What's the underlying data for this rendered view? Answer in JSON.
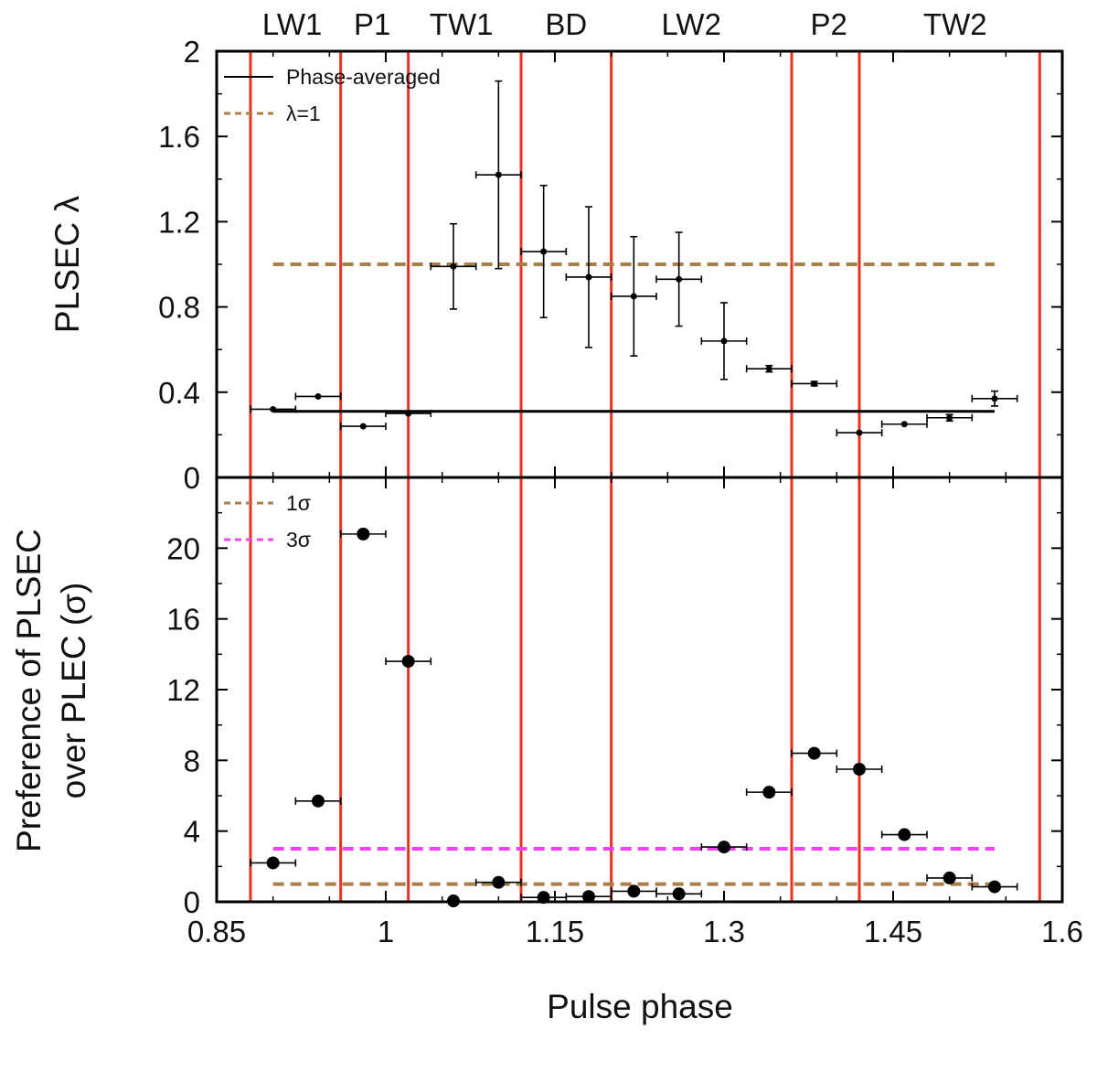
{
  "chart_data": {
    "type": "scatter",
    "xlabel": "Pulse phase",
    "xlim": [
      0.85,
      1.6
    ],
    "x_ticks": [
      "0.85",
      "1",
      "1.15",
      "1.3",
      "1.45",
      "1.6"
    ],
    "colors": {
      "phase_boundaries": "#e8321e",
      "lambda_ref": "#a87f4a",
      "one_sigma": "#a87f4a",
      "three_sigma": "#ee44ee",
      "points": "#000000",
      "axes": "#000000"
    },
    "phase_regions": [
      {
        "label": "LW1",
        "x_center": 0.917
      },
      {
        "label": "P1",
        "x_center": 0.988
      },
      {
        "label": "TW1",
        "x_center": 1.067
      },
      {
        "label": "BD",
        "x_center": 1.16
      },
      {
        "label": "LW2",
        "x_center": 1.271
      },
      {
        "label": "P2",
        "x_center": 1.393
      },
      {
        "label": "TW2",
        "x_center": 1.505
      }
    ],
    "phase_boundaries_x": [
      0.88,
      0.96,
      1.02,
      1.12,
      1.2,
      1.36,
      1.42,
      1.58
    ],
    "panels": [
      {
        "id": "top",
        "ylabel": "PLSEC λ",
        "ylim": [
          0,
          2
        ],
        "y_ticks": [
          "0",
          "0.4",
          "0.8",
          "1.2",
          "1.6",
          "2"
        ],
        "legend": [
          {
            "label": "Phase-averaged",
            "style": "solid",
            "color": "#000000"
          },
          {
            "label": "λ=1",
            "style": "dashed",
            "color": "#a87f4a"
          }
        ],
        "reference_lines": [
          {
            "name": "Phase-averaged",
            "y": 0.31,
            "x_range": [
              0.9,
              1.54
            ],
            "style": "solid",
            "color": "#000000"
          },
          {
            "name": "λ=1",
            "y": 1.0,
            "x_range": [
              0.9,
              1.54
            ],
            "style": "dashed",
            "color": "#a87f4a"
          }
        ],
        "points": [
          {
            "x": 0.9,
            "xerr": 0.02,
            "y": 0.32,
            "yerr": 0.0
          },
          {
            "x": 0.94,
            "xerr": 0.02,
            "y": 0.38,
            "yerr": 0.0
          },
          {
            "x": 0.98,
            "xerr": 0.02,
            "y": 0.24,
            "yerr": 0.0
          },
          {
            "x": 1.02,
            "xerr": 0.02,
            "y": 0.3,
            "yerr": 0.0
          },
          {
            "x": 1.06,
            "xerr": 0.02,
            "y": 0.99,
            "yerr": 0.2
          },
          {
            "x": 1.1,
            "xerr": 0.02,
            "y": 1.42,
            "yerr": 0.44
          },
          {
            "x": 1.14,
            "xerr": 0.02,
            "y": 1.06,
            "yerr": 0.31
          },
          {
            "x": 1.18,
            "xerr": 0.02,
            "y": 0.94,
            "yerr": 0.33
          },
          {
            "x": 1.22,
            "xerr": 0.02,
            "y": 0.85,
            "yerr": 0.28
          },
          {
            "x": 1.26,
            "xerr": 0.02,
            "y": 0.93,
            "yerr": 0.22
          },
          {
            "x": 1.3,
            "xerr": 0.02,
            "y": 0.64,
            "yerr": 0.18
          },
          {
            "x": 1.34,
            "xerr": 0.02,
            "y": 0.51,
            "yerr": 0.015
          },
          {
            "x": 1.38,
            "xerr": 0.02,
            "y": 0.44,
            "yerr": 0.01
          },
          {
            "x": 1.42,
            "xerr": 0.02,
            "y": 0.21,
            "yerr": 0.0
          },
          {
            "x": 1.46,
            "xerr": 0.02,
            "y": 0.25,
            "yerr": 0.0
          },
          {
            "x": 1.5,
            "xerr": 0.02,
            "y": 0.28,
            "yerr": 0.015
          },
          {
            "x": 1.54,
            "xerr": 0.02,
            "y": 0.37,
            "yerr": 0.035
          }
        ]
      },
      {
        "id": "bottom",
        "ylabel_lines": [
          "Preference of PLSEC",
          "over PLEC (σ)"
        ],
        "ylim": [
          0,
          24
        ],
        "y_ticks": [
          "0",
          "4",
          "8",
          "12",
          "16",
          "20"
        ],
        "legend": [
          {
            "label": "1σ",
            "style": "dashed",
            "color": "#a87f4a"
          },
          {
            "label": "3σ",
            "style": "dashed",
            "color": "#ee44ee"
          }
        ],
        "reference_lines": [
          {
            "name": "1σ",
            "y": 1,
            "x_range": [
              0.9,
              1.54
            ],
            "style": "dashed",
            "color": "#a87f4a"
          },
          {
            "name": "3σ",
            "y": 3,
            "x_range": [
              0.9,
              1.54
            ],
            "style": "dashed",
            "color": "#ee44ee"
          }
        ],
        "points": [
          {
            "x": 0.9,
            "xerr": 0.02,
            "y": 2.2
          },
          {
            "x": 0.94,
            "xerr": 0.02,
            "y": 5.7
          },
          {
            "x": 0.98,
            "xerr": 0.02,
            "y": 20.8
          },
          {
            "x": 1.02,
            "xerr": 0.02,
            "y": 13.6
          },
          {
            "x": 1.06,
            "xerr": 0.0,
            "y": 0.05
          },
          {
            "x": 1.1,
            "xerr": 0.02,
            "y": 1.1
          },
          {
            "x": 1.14,
            "xerr": 0.02,
            "y": 0.25
          },
          {
            "x": 1.18,
            "xerr": 0.02,
            "y": 0.3
          },
          {
            "x": 1.22,
            "xerr": 0.02,
            "y": 0.6
          },
          {
            "x": 1.26,
            "xerr": 0.02,
            "y": 0.45
          },
          {
            "x": 1.3,
            "xerr": 0.02,
            "y": 3.1
          },
          {
            "x": 1.34,
            "xerr": 0.02,
            "y": 6.2
          },
          {
            "x": 1.38,
            "xerr": 0.02,
            "y": 8.4
          },
          {
            "x": 1.42,
            "xerr": 0.02,
            "y": 7.5
          },
          {
            "x": 1.46,
            "xerr": 0.02,
            "y": 3.8
          },
          {
            "x": 1.5,
            "xerr": 0.02,
            "y": 1.35
          },
          {
            "x": 1.54,
            "xerr": 0.02,
            "y": 0.85
          }
        ]
      }
    ],
    "grid": false
  }
}
